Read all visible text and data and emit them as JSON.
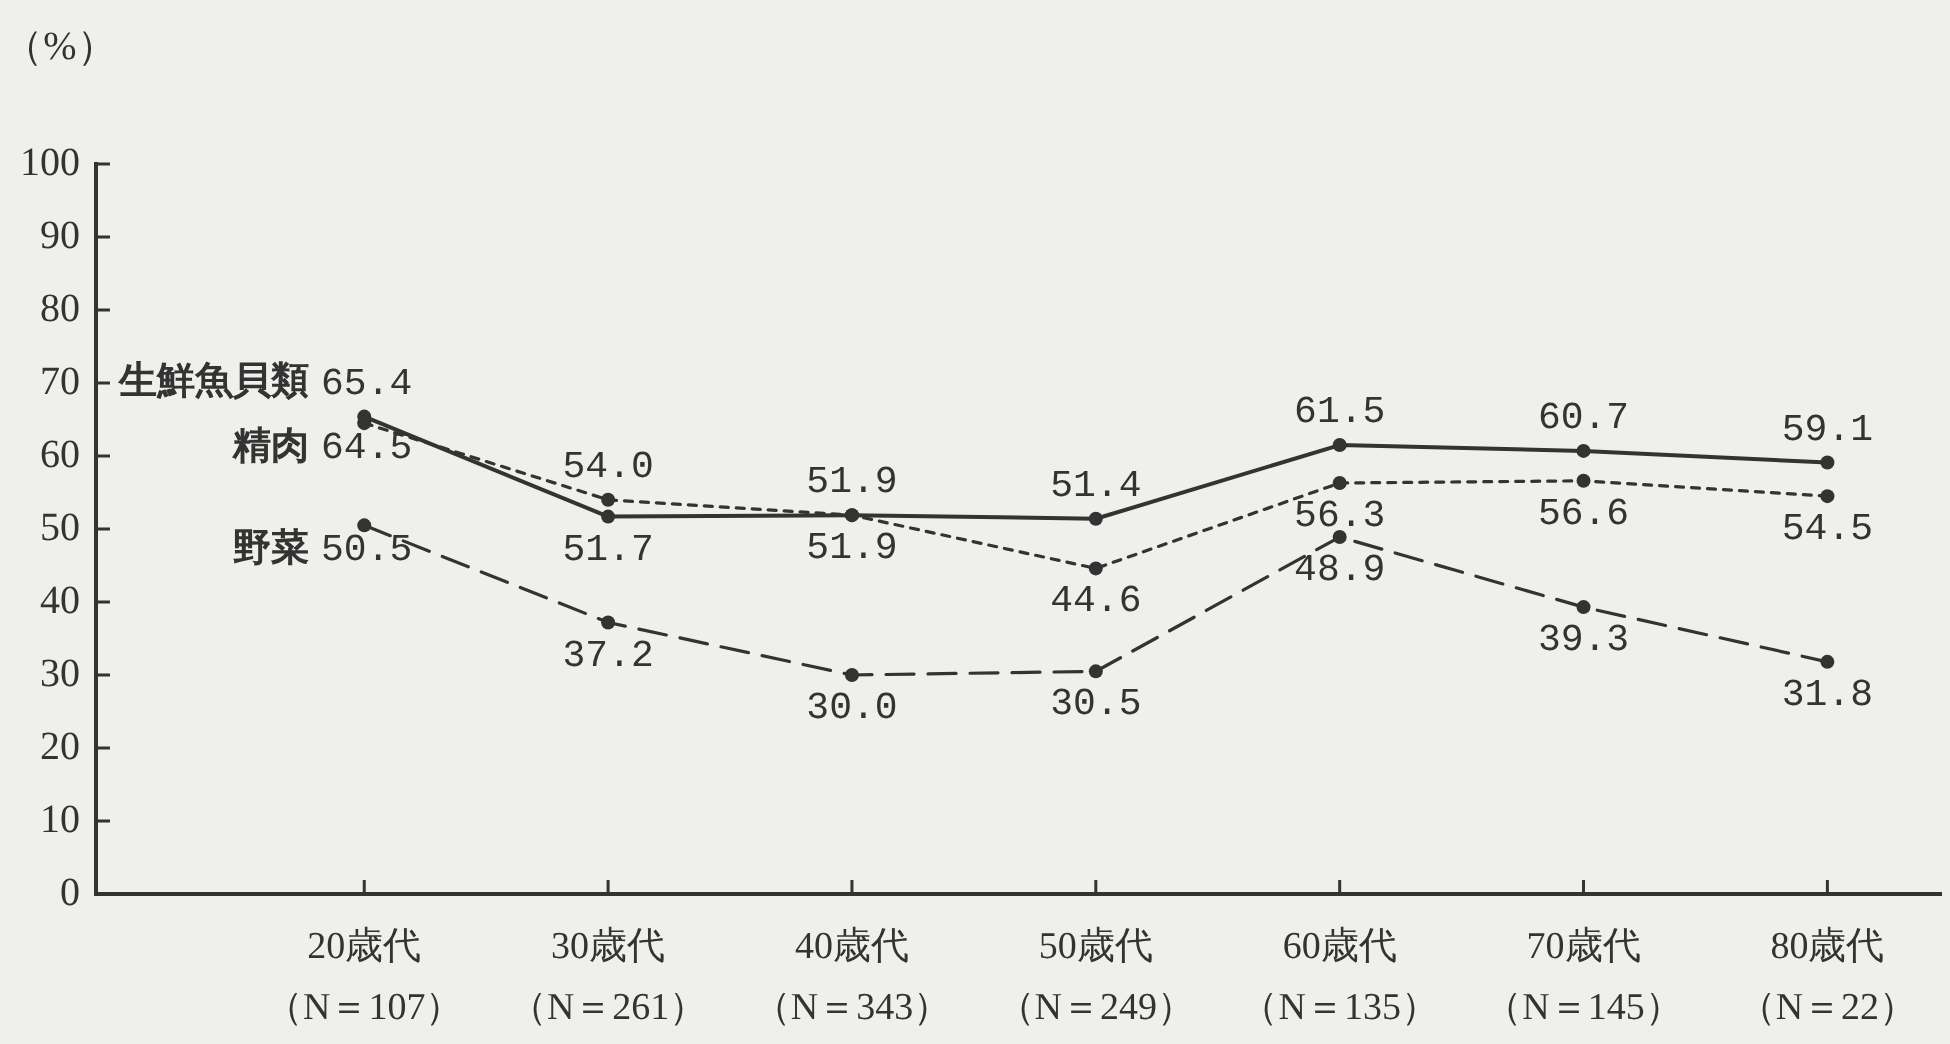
{
  "chart_data": {
    "type": "line",
    "ylabel": "（%）",
    "categories": [
      "20歳代（N＝107）",
      "30歳代（N＝261）",
      "40歳代（N＝343）",
      "50歳代（N＝249）",
      "60歳代（N＝135）",
      "70歳代（N＝145）",
      "80歳代（N＝22）"
    ],
    "ylim": [
      0,
      100
    ],
    "yticks": [
      0,
      10,
      20,
      30,
      40,
      50,
      60,
      70,
      80,
      90,
      100
    ],
    "grid": false,
    "legend": false,
    "marker": "circle",
    "series": [
      {
        "name": "生鮮魚貝類",
        "color": "#333333",
        "line_style": "solid",
        "values": [
          65.4,
          51.7,
          51.9,
          51.4,
          61.5,
          60.7,
          59.1
        ],
        "value_labels": [
          "65.4",
          "51.7",
          "51.9",
          "51.4",
          "61.5",
          "60.7",
          "59.1"
        ]
      },
      {
        "name": "精肉",
        "color": "#333333",
        "line_style": "dotted",
        "values": [
          64.5,
          54.0,
          51.9,
          44.6,
          56.3,
          56.6,
          54.5
        ],
        "value_labels": [
          "64.5",
          "54.0",
          "51.9",
          "44.6",
          "56.3",
          "56.6",
          "54.5"
        ]
      },
      {
        "name": "野菜",
        "color": "#333333",
        "line_style": "dashed",
        "values": [
          50.5,
          37.2,
          30.0,
          30.5,
          48.9,
          39.3,
          31.8
        ],
        "value_labels": [
          "50.5",
          "37.2",
          "30.0",
          "30.5",
          "48.9",
          "39.3",
          "31.8"
        ]
      }
    ]
  }
}
